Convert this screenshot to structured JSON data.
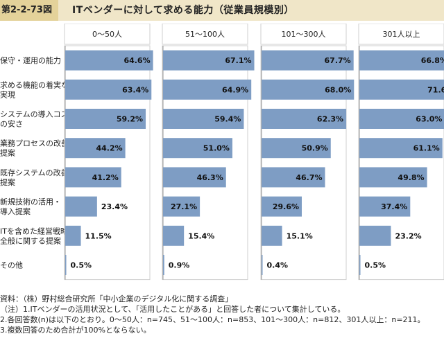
{
  "header": {
    "figure_number": "第2-2-73図",
    "title": "ITベンダーに対して求める能力（従業員規模別）"
  },
  "chart_data": {
    "type": "bar",
    "orientation": "horizontal",
    "categories": [
      [
        "保守・運用の能力"
      ],
      [
        "求める機能の着実な",
        "実現"
      ],
      [
        "システムの導入コスト",
        "の安さ"
      ],
      [
        "業務プロセスの改善",
        "提案"
      ],
      [
        "既存システムの改善",
        "提案"
      ],
      [
        "新規技術の活用・",
        "導入提案"
      ],
      [
        "ITを含めた経営戦略",
        "全般に関する提案"
      ],
      [
        "その他"
      ]
    ],
    "panels": [
      {
        "name": "0〜50人",
        "values": [
          64.6,
          63.4,
          59.2,
          44.2,
          41.2,
          23.4,
          11.5,
          0.5
        ]
      },
      {
        "name": "51〜100人",
        "values": [
          67.1,
          64.9,
          59.4,
          51.0,
          46.3,
          27.1,
          15.4,
          0.9
        ]
      },
      {
        "name": "101〜300人",
        "values": [
          67.7,
          68.0,
          62.3,
          50.9,
          46.7,
          29.6,
          15.1,
          0.4
        ]
      },
      {
        "name": "301人以上",
        "values": [
          66.8,
          71.6,
          63.0,
          61.1,
          49.8,
          37.4,
          23.2,
          0.5
        ]
      }
    ],
    "value_suffix": "%",
    "xlim": [
      0,
      70
    ],
    "x_ticks": [
      "0%",
      "20%",
      "40%",
      "60%"
    ],
    "bar_color": "#7e9dc4",
    "grid": false
  },
  "notes": [
    "資料：（株）野村総合研究所「中小企業のデジタル化に関する調査」",
    "（注）1.ITベンダーの活用状況として、「活用したことがある」と回答した者について集計している。",
    "2.各回答数(n)は以下のとおり。0〜50人：n=745、51〜100人：n=853、101〜300人：n=812、301人以上：n=211。",
    "3.複数回答のため合計が100%とならない。"
  ]
}
